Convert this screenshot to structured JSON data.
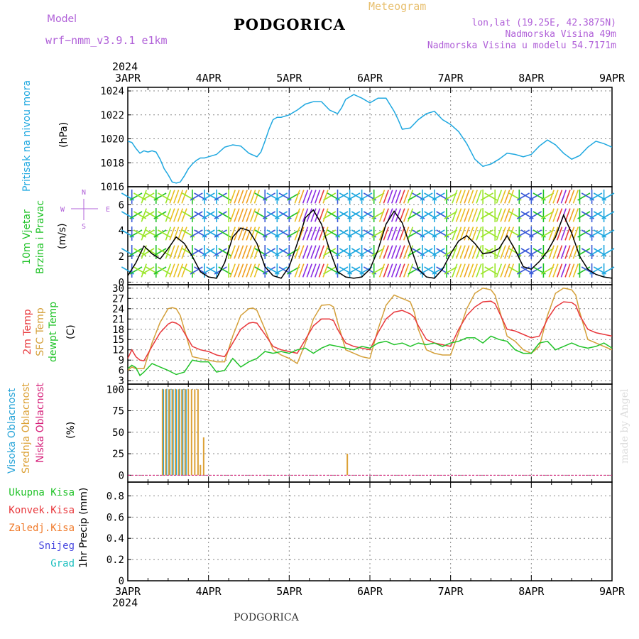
{
  "header": {
    "model_label": "Model",
    "model_name": "wrf−nmm_v3.9.1  e1km",
    "title": "PODGORICA",
    "meteogram_label": "Meteogram",
    "lonlat": "lon,lat (19.25E, 42.3875N)",
    "altitude": "Nadmorska Visina 49m",
    "model_altitude": "Nadmorska Visina u modelu 54.7171m",
    "footer_title": "PODGORICA",
    "watermark": "made by Angel"
  },
  "colors": {
    "pressure": "#1fa8e0",
    "temp2m": "#e8383c",
    "sfc_temp": "#d4a03a",
    "dewpoint": "#22c32a",
    "high_cloud": "#27a4d8",
    "mid_cloud": "#dca136",
    "low_cloud": "#d6207a",
    "model_text": "#b060d8",
    "meteogram_text": "#e8c070"
  },
  "chart_data": [
    {
      "id": "pressure",
      "type": "line",
      "ylabel_lines": [
        "Pritisak na nivou mora",
        "(hPa)"
      ],
      "ylim": [
        1016,
        1024.3
      ],
      "yticks": [
        1016,
        1018,
        1020,
        1022,
        1024
      ],
      "grid": true,
      "x_unit": "days since 3APR 2024 00 UTC",
      "series": [
        {
          "x": [
            0,
            0.05,
            0.1,
            0.15,
            0.2,
            0.25,
            0.3,
            0.35,
            0.4,
            0.45,
            0.5,
            0.55,
            0.6,
            0.65,
            0.7,
            0.75,
            0.8,
            0.85,
            0.9,
            0.95,
            1.0,
            1.1,
            1.2,
            1.3,
            1.4,
            1.5,
            1.6,
            1.65,
            1.7,
            1.75,
            1.8,
            1.85,
            1.9,
            2.0,
            2.1,
            2.2,
            2.3,
            2.4,
            2.5,
            2.6,
            2.65,
            2.7,
            2.8,
            2.9,
            3.0,
            3.1,
            3.2,
            3.3,
            3.35,
            3.4,
            3.5,
            3.6,
            3.7,
            3.8,
            3.9,
            4.0,
            4.1,
            4.2,
            4.3,
            4.4,
            4.5,
            4.6,
            4.7,
            4.8,
            4.9,
            5.0,
            5.1,
            5.2,
            5.3,
            5.4,
            5.5,
            5.6,
            5.7,
            5.8,
            5.9,
            6.0
          ],
          "values": [
            1019.8,
            1019.7,
            1019.2,
            1018.8,
            1019.0,
            1018.9,
            1019.0,
            1018.9,
            1018.3,
            1017.5,
            1017.0,
            1016.4,
            1016.3,
            1016.4,
            1016.9,
            1017.5,
            1017.9,
            1018.2,
            1018.4,
            1018.4,
            1018.5,
            1018.7,
            1019.3,
            1019.5,
            1019.4,
            1018.8,
            1018.5,
            1018.9,
            1019.8,
            1020.8,
            1021.6,
            1021.8,
            1021.8,
            1022.0,
            1022.4,
            1022.9,
            1023.1,
            1023.1,
            1022.4,
            1022.1,
            1022.6,
            1023.3,
            1023.7,
            1023.4,
            1023.0,
            1023.4,
            1023.4,
            1022.3,
            1021.6,
            1020.8,
            1020.9,
            1021.6,
            1022.1,
            1022.3,
            1021.6,
            1021.2,
            1020.6,
            1019.6,
            1018.3,
            1017.7,
            1017.9,
            1018.3,
            1018.8,
            1018.7,
            1018.5,
            1018.7,
            1019.4,
            1019.9,
            1019.5,
            1018.8,
            1018.3,
            1018.6,
            1019.3,
            1019.8,
            1019.6,
            1019.3
          ]
        }
      ]
    },
    {
      "id": "wind",
      "type": "line",
      "ylabel_lines": [
        "10m Vjetar",
        "Brzina i Pravac",
        "(m/s)"
      ],
      "compass": {
        "n": "N",
        "s": "S",
        "e": "E",
        "w": "W"
      },
      "ylim": [
        -0.2,
        7.4
      ],
      "yticks": [
        0,
        2,
        4,
        6
      ],
      "grid": true,
      "series": [
        {
          "name": "speed",
          "x": [
            0,
            0.1,
            0.2,
            0.3,
            0.4,
            0.5,
            0.6,
            0.7,
            0.8,
            0.9,
            1.0,
            1.1,
            1.2,
            1.3,
            1.4,
            1.5,
            1.6,
            1.7,
            1.8,
            1.9,
            2.0,
            2.1,
            2.2,
            2.3,
            2.4,
            2.5,
            2.6,
            2.7,
            2.8,
            2.9,
            3.0,
            3.1,
            3.2,
            3.3,
            3.4,
            3.5,
            3.6,
            3.7,
            3.8,
            3.9,
            4.0,
            4.1,
            4.2,
            4.3,
            4.4,
            4.5,
            4.6,
            4.7,
            4.8,
            4.9,
            5.0,
            5.1,
            5.2,
            5.3,
            5.4,
            5.5,
            5.6,
            5.7,
            5.8,
            5.9,
            6.0
          ],
          "values": [
            0.5,
            1.5,
            2.8,
            2.2,
            1.8,
            2.6,
            3.5,
            3.0,
            2.0,
            0.8,
            0.4,
            0.3,
            1.5,
            3.5,
            4.2,
            4.0,
            3.0,
            1.2,
            0.5,
            0.3,
            1.2,
            3.0,
            5.0,
            5.6,
            4.5,
            2.5,
            0.8,
            0.4,
            0.3,
            0.4,
            1.0,
            2.5,
            4.5,
            5.5,
            4.6,
            2.8,
            1.0,
            0.4,
            0.3,
            1.0,
            2.2,
            3.2,
            3.6,
            3.0,
            2.2,
            2.3,
            2.6,
            3.6,
            2.5,
            1.2,
            1.0,
            1.6,
            2.4,
            3.5,
            5.2,
            3.8,
            2.0,
            1.0,
            0.6,
            0.4,
            0.3
          ]
        }
      ]
    },
    {
      "id": "temperature",
      "type": "line",
      "ylabel_lines": [
        "2m Temp",
        "SFC Temp",
        "dewpt Temp",
        "(C)"
      ],
      "ylim": [
        2,
        31
      ],
      "yticks": [
        3,
        6,
        9,
        12,
        15,
        18,
        21,
        24,
        27,
        30
      ],
      "grid": true,
      "series": [
        {
          "name": "2m Temp",
          "x": [
            0,
            0.05,
            0.1,
            0.15,
            0.2,
            0.3,
            0.4,
            0.5,
            0.55,
            0.6,
            0.65,
            0.7,
            0.8,
            0.9,
            1.0,
            1.1,
            1.2,
            1.3,
            1.4,
            1.5,
            1.55,
            1.6,
            1.7,
            1.8,
            1.9,
            2.0,
            2.1,
            2.2,
            2.3,
            2.4,
            2.5,
            2.55,
            2.6,
            2.7,
            2.8,
            2.9,
            3.0,
            3.1,
            3.2,
            3.3,
            3.4,
            3.5,
            3.55,
            3.6,
            3.7,
            3.8,
            3.9,
            4.0,
            4.1,
            4.2,
            4.3,
            4.4,
            4.5,
            4.55,
            4.6,
            4.7,
            4.8,
            4.9,
            5.0,
            5.1,
            5.2,
            5.3,
            5.4,
            5.5,
            5.55,
            5.6,
            5.7,
            5.8,
            5.9,
            6.0
          ],
          "values": [
            9.5,
            12.0,
            10.0,
            9.0,
            8.8,
            13.0,
            17.0,
            19.5,
            20.1,
            19.8,
            19.0,
            17.0,
            13.0,
            12.0,
            11.5,
            10.5,
            10.0,
            14.0,
            18.0,
            19.8,
            20.0,
            19.8,
            16.5,
            13.0,
            12.0,
            11.5,
            11.0,
            15.0,
            19.0,
            21.0,
            21.0,
            20.5,
            18.0,
            14.0,
            13.0,
            12.5,
            12.0,
            17.0,
            21.0,
            23.0,
            23.5,
            22.5,
            21.5,
            19.0,
            15.0,
            14.0,
            13.5,
            13.0,
            18.0,
            22.0,
            24.5,
            26.0,
            26.2,
            25.5,
            23.0,
            18.0,
            17.5,
            16.5,
            15.5,
            16.0,
            21.0,
            24.5,
            26.0,
            25.8,
            25.0,
            22.0,
            18.0,
            17.0,
            16.5,
            16.0
          ]
        },
        {
          "name": "SFC Temp",
          "x": [
            0,
            0.05,
            0.1,
            0.2,
            0.3,
            0.4,
            0.5,
            0.55,
            0.6,
            0.65,
            0.7,
            0.8,
            0.9,
            1.0,
            1.1,
            1.2,
            1.3,
            1.4,
            1.5,
            1.55,
            1.6,
            1.7,
            1.8,
            1.9,
            2.0,
            2.1,
            2.2,
            2.3,
            2.4,
            2.5,
            2.55,
            2.6,
            2.7,
            2.8,
            2.9,
            3.0,
            3.1,
            3.2,
            3.3,
            3.4,
            3.5,
            3.55,
            3.6,
            3.7,
            3.8,
            3.9,
            4.0,
            4.1,
            4.2,
            4.3,
            4.4,
            4.5,
            4.55,
            4.6,
            4.7,
            4.8,
            4.9,
            5.0,
            5.1,
            5.2,
            5.3,
            5.4,
            5.5,
            5.55,
            5.6,
            5.7,
            5.8,
            5.9,
            6.0
          ],
          "values": [
            6.0,
            7.0,
            6.5,
            6.5,
            14.0,
            20.0,
            24.0,
            24.3,
            24.0,
            22.0,
            18.0,
            10.0,
            9.5,
            9.0,
            8.5,
            8.5,
            16.0,
            22.0,
            24.0,
            24.2,
            23.5,
            18.0,
            12.0,
            10.5,
            9.5,
            8.0,
            14.0,
            21.0,
            25.0,
            25.2,
            24.5,
            20.0,
            12.0,
            11.0,
            10.0,
            9.5,
            18.0,
            25.0,
            28.0,
            27.0,
            26.0,
            23.0,
            18.0,
            12.0,
            11.0,
            10.5,
            10.5,
            17.0,
            24.0,
            28.5,
            30.0,
            29.5,
            28.0,
            24.0,
            16.0,
            14.5,
            12.0,
            11.0,
            13.0,
            22.0,
            28.5,
            30.0,
            29.5,
            28.0,
            23.0,
            15.0,
            14.0,
            13.0,
            12.0
          ]
        },
        {
          "name": "dewpt Temp",
          "x": [
            0,
            0.05,
            0.1,
            0.15,
            0.2,
            0.3,
            0.4,
            0.5,
            0.6,
            0.7,
            0.8,
            0.9,
            1.0,
            1.1,
            1.2,
            1.3,
            1.4,
            1.5,
            1.6,
            1.7,
            1.8,
            1.9,
            2.0,
            2.1,
            2.2,
            2.3,
            2.4,
            2.5,
            2.6,
            2.7,
            2.8,
            2.9,
            3.0,
            3.1,
            3.2,
            3.3,
            3.4,
            3.5,
            3.6,
            3.7,
            3.8,
            3.9,
            4.0,
            4.1,
            4.2,
            4.3,
            4.4,
            4.5,
            4.6,
            4.7,
            4.8,
            4.9,
            5.0,
            5.1,
            5.2,
            5.3,
            5.4,
            5.5,
            5.6,
            5.7,
            5.8,
            5.9,
            6.0
          ],
          "values": [
            6.5,
            7.5,
            6.8,
            4.5,
            5.5,
            8.0,
            7.0,
            6.0,
            4.8,
            5.5,
            9.0,
            8.5,
            8.5,
            5.5,
            6.0,
            9.5,
            7.0,
            8.5,
            9.5,
            11.5,
            11.0,
            11.5,
            11.0,
            12.0,
            12.5,
            11.0,
            12.5,
            13.5,
            13.0,
            12.5,
            12.0,
            13.0,
            12.5,
            14.0,
            14.5,
            13.5,
            14.0,
            13.0,
            14.0,
            13.5,
            14.0,
            13.0,
            14.0,
            14.5,
            15.5,
            15.5,
            14.0,
            16.0,
            15.0,
            14.5,
            12.0,
            11.0,
            11.0,
            14.0,
            14.5,
            12.0,
            13.0,
            14.0,
            13.0,
            12.5,
            13.0,
            14.0,
            12.5
          ]
        }
      ]
    },
    {
      "id": "cloud",
      "type": "bar",
      "ylabel_lines": [
        "Visoka Oblacnost",
        "Srednja Oblacnost",
        "Niska Oblacnost",
        "(%)"
      ],
      "ylim": [
        -8,
        106
      ],
      "yticks": [
        0,
        25,
        50,
        75,
        100
      ],
      "grid": true,
      "series": [
        {
          "name": "Visoka Oblacnost",
          "x": [
            0.44,
            0.48,
            0.52,
            0.56,
            0.6,
            0.64,
            0.68,
            0.72
          ],
          "values": [
            100,
            100,
            100,
            100,
            100,
            100,
            100,
            100
          ]
        },
        {
          "name": "Srednja Oblacnost",
          "x": [
            0.43,
            0.47,
            0.51,
            0.55,
            0.59,
            0.63,
            0.67,
            0.71,
            0.75,
            0.79,
            0.83,
            0.87,
            0.9,
            0.94,
            2.72
          ],
          "values": [
            100,
            100,
            100,
            100,
            100,
            100,
            100,
            100,
            100,
            100,
            100,
            100,
            12,
            44,
            25
          ]
        },
        {
          "name": "Niska Oblacnost",
          "x": [],
          "values": []
        }
      ]
    },
    {
      "id": "precip",
      "type": "bar",
      "ylabel_lines": [
        "1hr Precip (mm)"
      ],
      "legend": [
        "Ukupna  Kisa",
        "Konvek.Kisa",
        "Zaledj.Kisa",
        "Snijeg",
        "Grad"
      ],
      "legend_colors": [
        "#22c32a",
        "#e8383c",
        "#f07a2a",
        "#4a4ae0",
        "#1fc0c0"
      ],
      "ylim": [
        0,
        0.93
      ],
      "yticks": [
        0,
        0.2,
        0.4,
        0.6,
        0.8
      ],
      "ytick_labels": [
        "0",
        "0.2",
        "0.4",
        "0.6",
        "0.8"
      ],
      "grid": true,
      "series": []
    }
  ],
  "xaxis": {
    "day_labels": [
      "3APR",
      "4APR",
      "5APR",
      "6APR",
      "7APR",
      "8APR",
      "9APR"
    ],
    "year": "2024"
  }
}
